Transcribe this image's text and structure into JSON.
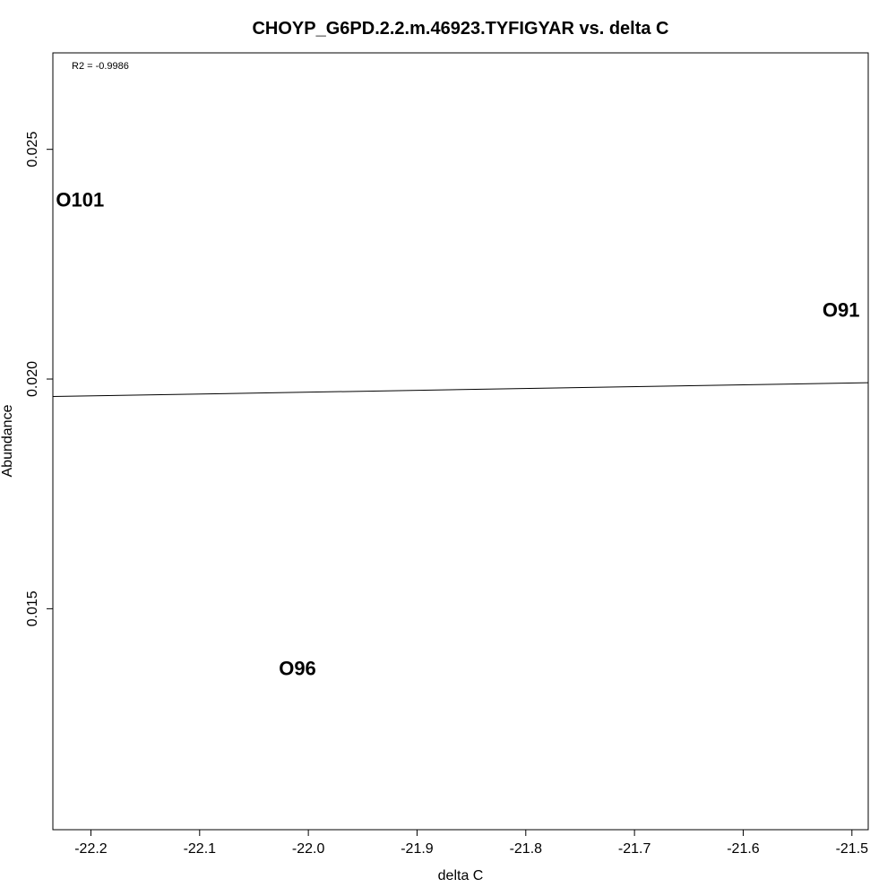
{
  "chart_data": {
    "type": "scatter",
    "title": "CHOYP_G6PD.2.2.m.46923.TYFIGYAR vs. delta C",
    "xlabel": "delta C",
    "ylabel": "Abundance",
    "annotation": "R2 = -0.9986",
    "xlim": [
      -22.235,
      -21.485
    ],
    "ylim": [
      0.01019,
      0.0271
    ],
    "x_ticks": [
      -22.2,
      -22.1,
      -22.0,
      -21.9,
      -21.8,
      -21.7,
      -21.6,
      -21.5
    ],
    "x_tick_labels": [
      "-22.2",
      "-22.1",
      "-22.0",
      "-21.9",
      "-21.8",
      "-21.7",
      "-21.6",
      "-21.5"
    ],
    "y_ticks": [
      0.015,
      0.02,
      0.025
    ],
    "y_tick_labels": [
      "0.015",
      "0.020",
      "0.025"
    ],
    "points": [
      {
        "label": "O101",
        "x": -22.21,
        "y": 0.0239
      },
      {
        "label": "O91",
        "x": -21.51,
        "y": 0.0215
      },
      {
        "label": "O96",
        "x": -22.01,
        "y": 0.0137
      }
    ],
    "fit_line": {
      "x": [
        -22.235,
        -21.485
      ],
      "y": [
        0.01962,
        0.01992
      ]
    },
    "grid": false,
    "legend": "none"
  }
}
